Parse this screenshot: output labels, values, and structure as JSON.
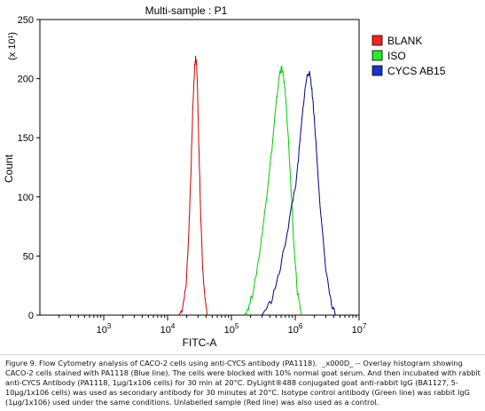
{
  "chart_data": {
    "type": "line",
    "title": "Multi-sample : P1",
    "xlabel": "FITC-A",
    "ylabel": "Count",
    "y_multiplier_label": "(x 10¹)",
    "x_scale": "log",
    "xlim": [
      100,
      10000000
    ],
    "ylim": [
      0,
      250
    ],
    "x_ticks": [
      {
        "value": 1000,
        "base": "10",
        "exp": "3"
      },
      {
        "value": 10000,
        "base": "10",
        "exp": "4"
      },
      {
        "value": 100000,
        "base": "10",
        "exp": "5"
      },
      {
        "value": 1000000,
        "base": "10",
        "exp": "6"
      },
      {
        "value": 10000000,
        "base": "10",
        "exp": "7"
      }
    ],
    "y_ticks": [
      0,
      50,
      100,
      150,
      200,
      250
    ],
    "grid": false,
    "legend_position": "top-right",
    "series": [
      {
        "name": "BLANK",
        "color": "#cc0000",
        "legend_fill": "#ff2020",
        "points": [
          [
            15000,
            0
          ],
          [
            17000,
            5
          ],
          [
            19500,
            25
          ],
          [
            21500,
            70
          ],
          [
            23500,
            130
          ],
          [
            25000,
            180
          ],
          [
            26500,
            210
          ],
          [
            27500,
            218
          ],
          [
            28500,
            212
          ],
          [
            29500,
            190
          ],
          [
            31000,
            140
          ],
          [
            33000,
            85
          ],
          [
            35500,
            40
          ],
          [
            38500,
            12
          ],
          [
            42000,
            0
          ]
        ]
      },
      {
        "name": "ISO",
        "color": "#00cc00",
        "legend_fill": "#22ee22",
        "points": [
          [
            160000,
            0
          ],
          [
            190000,
            8
          ],
          [
            230000,
            25
          ],
          [
            280000,
            55
          ],
          [
            330000,
            85
          ],
          [
            380000,
            115
          ],
          [
            430000,
            140
          ],
          [
            480000,
            168
          ],
          [
            530000,
            190
          ],
          [
            570000,
            205
          ],
          [
            610000,
            209
          ],
          [
            650000,
            203
          ],
          [
            700000,
            188
          ],
          [
            770000,
            155
          ],
          [
            850000,
            110
          ],
          [
            950000,
            60
          ],
          [
            1080000,
            20
          ],
          [
            1250000,
            0
          ]
        ]
      },
      {
        "name": "CYCS AB15",
        "color": "#00008b",
        "legend_fill": "#1a33cc",
        "points": [
          [
            300000,
            0
          ],
          [
            420000,
            12
          ],
          [
            560000,
            35
          ],
          [
            720000,
            65
          ],
          [
            900000,
            95
          ],
          [
            1050000,
            115
          ],
          [
            1200000,
            150
          ],
          [
            1350000,
            180
          ],
          [
            1500000,
            200
          ],
          [
            1620000,
            206
          ],
          [
            1750000,
            200
          ],
          [
            1900000,
            180
          ],
          [
            2150000,
            140
          ],
          [
            2500000,
            85
          ],
          [
            3000000,
            40
          ],
          [
            3700000,
            8
          ],
          [
            4300000,
            0
          ]
        ]
      }
    ]
  },
  "caption": "Figure 9. Flow Cytometry analysis of CACO-2 cells using anti-CYCS antibody (PA1118).  _x000D_ -- Overlay histogram showing CACO-2 cells stained with PA1118 (Blue line). The cells were blocked with 10% normal goat serum. And then incubated with rabbit anti-CYCS Antibody (PA1118, 1μg/1x106 cells) for 30 min at 20°C. DyLight®488 conjugated goat anti-rabbit IgG (BA1127, 5-10μg/1x106 cells) was used as secondary antibody for 30 minutes at 20°C. Isotype control antibody (Green line) was rabbit IgG (1μg/1x106) used under the same conditions. Unlabelled sample (Red line) was also used as a control."
}
